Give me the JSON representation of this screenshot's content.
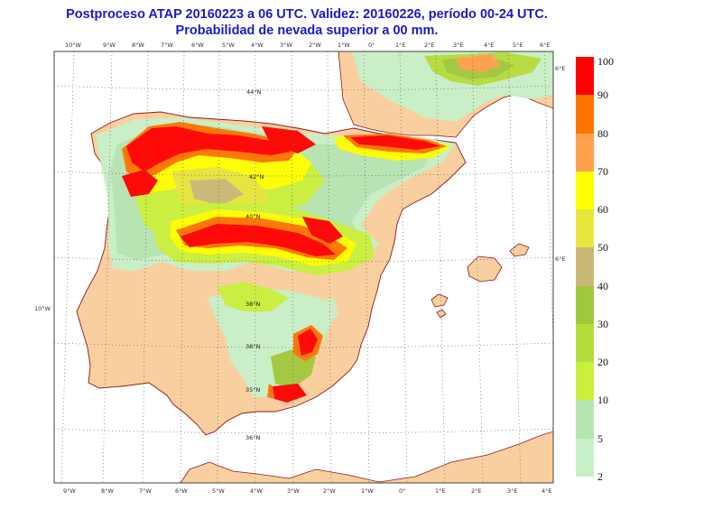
{
  "title_line1": "Postproceso ATAP 20160223 a 06 UTC. Validez: 20160226, período 00-24 UTC.",
  "title_line2": "Probabilidad de nevada superior a 00 mm.",
  "colors": {
    "sea": "#ffffff",
    "land": "#f9cf9f",
    "border": "#8b1a1a",
    "frame": "#444444"
  },
  "legend": [
    {
      "label": "100",
      "color": "#ff0000"
    },
    {
      "label": "90",
      "color": "#ff7300"
    },
    {
      "label": "80",
      "color": "#ffa04d"
    },
    {
      "label": "70",
      "color": "#ffff00"
    },
    {
      "label": "60",
      "color": "#e6e63c"
    },
    {
      "label": "50",
      "color": "#c8b978"
    },
    {
      "label": "40",
      "color": "#a0c83c"
    },
    {
      "label": "30",
      "color": "#b4dc3c"
    },
    {
      "label": "20",
      "color": "#c8f03c"
    },
    {
      "label": "10",
      "color": "#b4e6b4"
    },
    {
      "label": "5",
      "color": "#c8f0c8"
    },
    {
      "label": "2",
      "color": ""
    }
  ],
  "grid_labels": {
    "top": [
      "10°W",
      "9°W",
      "8°W",
      "7°W",
      "6°W",
      "5°W",
      "4°W",
      "3°W",
      "2°W",
      "1°W",
      "0°",
      "1°E",
      "2°E",
      "3°E",
      "4°E",
      "5°E",
      "6°E"
    ],
    "bottom": [
      "9°W",
      "8°W",
      "7°W",
      "6°W",
      "5°W",
      "4°W",
      "3°W",
      "2°W",
      "1°W",
      "0°",
      "1°E",
      "2°E",
      "3°E",
      "4°E"
    ],
    "right": [
      "6°E",
      "6°E"
    ],
    "left": [
      "10°W"
    ],
    "inner": [
      "44°N",
      "42°N",
      "40°N",
      "38°N",
      "36°N",
      "38°N",
      "35°N"
    ]
  }
}
